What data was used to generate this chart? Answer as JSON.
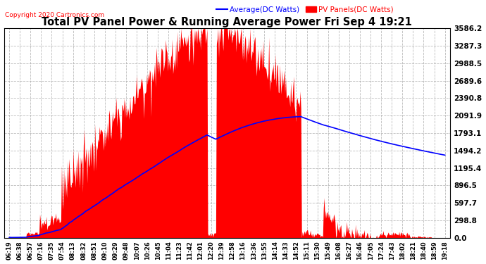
{
  "title": "Total PV Panel Power & Running Average Power Fri Sep 4 19:21",
  "copyright": "Copyright 2020 Cartronics.com",
  "legend_avg": "Average(DC Watts)",
  "legend_pv": "PV Panels(DC Watts)",
  "legend_avg_color": "blue",
  "legend_pv_color": "red",
  "title_color": "black",
  "background_color": "#ffffff",
  "grid_color": "#aaaaaa",
  "ylim": [
    0,
    3586.2
  ],
  "yticks": [
    0.0,
    298.8,
    597.7,
    896.5,
    1195.4,
    1494.2,
    1793.1,
    2091.9,
    2390.8,
    2689.6,
    2988.5,
    3287.3,
    3586.2
  ],
  "xtick_labels": [
    "06:19",
    "06:38",
    "06:57",
    "07:16",
    "07:35",
    "07:54",
    "08:13",
    "08:32",
    "08:51",
    "09:10",
    "09:29",
    "09:48",
    "10:07",
    "10:26",
    "10:45",
    "11:04",
    "11:23",
    "11:42",
    "12:01",
    "12:20",
    "12:39",
    "12:58",
    "13:16",
    "13:36",
    "13:55",
    "14:14",
    "14:33",
    "14:52",
    "15:11",
    "15:30",
    "15:49",
    "16:08",
    "16:27",
    "16:46",
    "17:05",
    "17:24",
    "17:43",
    "18:02",
    "18:21",
    "18:40",
    "18:59",
    "19:18"
  ],
  "pv_color": "red",
  "avg_color": "blue"
}
